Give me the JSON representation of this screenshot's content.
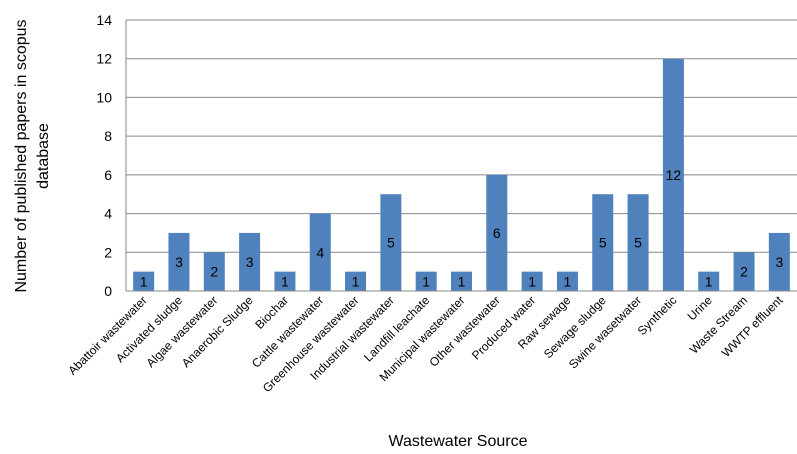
{
  "chart_data": {
    "type": "bar",
    "title": "",
    "xlabel": "Wastewater Source",
    "ylabel_lines": [
      "Number of published papers in scopus",
      "database"
    ],
    "ylim": [
      0,
      14
    ],
    "yticks": [
      0,
      2,
      4,
      6,
      8,
      10,
      12,
      14
    ],
    "grid": true,
    "bar_color": "#4F81BD",
    "categories": [
      "Abattoir wastewater",
      "Activated sludge",
      "Algae wastewater",
      "Anaerobic Sludge",
      "Biochar",
      "Cattle wastewater",
      "Greenhouse wastewater",
      "Industrial wastewater",
      "Landfill leachate",
      "Municipal wastewater",
      "Other wastewater",
      "Produced water",
      "Raw sewage",
      "Sewage sludge",
      "Swine wasetwater",
      "Synthetic",
      "Urine",
      "Waste Stream",
      "WWTP effluent"
    ],
    "values": [
      1,
      3,
      2,
      3,
      1,
      4,
      1,
      5,
      1,
      1,
      6,
      1,
      1,
      5,
      5,
      12,
      1,
      2,
      3
    ]
  }
}
